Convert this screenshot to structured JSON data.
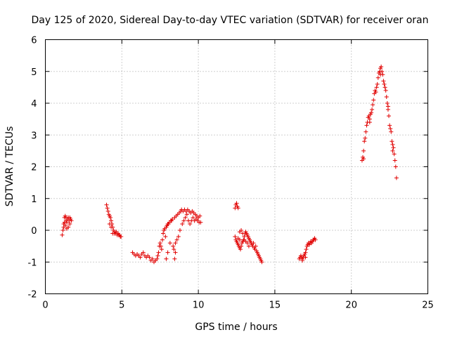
{
  "chart_data": {
    "type": "scatter",
    "title": "Day 125 of 2020, Sidereal Day-to-day VTEC variation (SDTVAR) for receiver oran",
    "xlabel": "GPS time / hours",
    "ylabel": "SDTVAR / TECUs",
    "xlim": [
      0,
      25
    ],
    "ylim": [
      -2,
      6
    ],
    "xticks": [
      0,
      5,
      10,
      15,
      20,
      25
    ],
    "yticks": [
      -2,
      -1,
      0,
      1,
      2,
      3,
      4,
      5,
      6
    ],
    "grid": true,
    "marker": "+",
    "color": "#e00000",
    "series": [
      {
        "name": "SDTVAR",
        "points": [
          [
            1.1,
            -0.15
          ],
          [
            1.15,
            0.0
          ],
          [
            1.2,
            0.2
          ],
          [
            1.25,
            0.4
          ],
          [
            1.3,
            0.45
          ],
          [
            1.35,
            0.3
          ],
          [
            1.4,
            0.25
          ],
          [
            1.45,
            0.35
          ],
          [
            1.5,
            0.4
          ],
          [
            1.55,
            0.3
          ],
          [
            1.6,
            0.2
          ],
          [
            1.65,
            0.35
          ],
          [
            1.7,
            0.3
          ],
          [
            1.2,
            0.1
          ],
          [
            1.3,
            0.15
          ],
          [
            1.4,
            0.05
          ],
          [
            1.5,
            0.1
          ],
          [
            1.35,
            0.4
          ],
          [
            1.6,
            0.4
          ],
          [
            1.25,
            0.25
          ],
          [
            4.0,
            0.8
          ],
          [
            4.05,
            0.7
          ],
          [
            4.1,
            0.6
          ],
          [
            4.15,
            0.5
          ],
          [
            4.2,
            0.45
          ],
          [
            4.25,
            0.4
          ],
          [
            4.3,
            0.3
          ],
          [
            4.35,
            0.2
          ],
          [
            4.4,
            0.1
          ],
          [
            4.45,
            0.0
          ],
          [
            4.5,
            -0.1
          ],
          [
            4.55,
            -0.05
          ],
          [
            4.6,
            -0.1
          ],
          [
            4.65,
            -0.05
          ],
          [
            4.7,
            -0.15
          ],
          [
            4.75,
            -0.1
          ],
          [
            4.8,
            -0.15
          ],
          [
            4.85,
            -0.15
          ],
          [
            4.9,
            -0.2
          ],
          [
            4.95,
            -0.2
          ],
          [
            4.3,
            0.1
          ],
          [
            4.4,
            -0.1
          ],
          [
            4.2,
            0.2
          ],
          [
            5.7,
            -0.7
          ],
          [
            5.8,
            -0.75
          ],
          [
            5.9,
            -0.8
          ],
          [
            6.0,
            -0.75
          ],
          [
            6.1,
            -0.8
          ],
          [
            6.2,
            -0.85
          ],
          [
            6.3,
            -0.75
          ],
          [
            6.4,
            -0.7
          ],
          [
            6.5,
            -0.8
          ],
          [
            6.6,
            -0.85
          ],
          [
            6.7,
            -0.8
          ],
          [
            6.8,
            -0.85
          ],
          [
            6.9,
            -0.95
          ],
          [
            7.0,
            -0.9
          ],
          [
            7.1,
            -1.0
          ],
          [
            7.2,
            -0.95
          ],
          [
            7.3,
            -0.9
          ],
          [
            7.35,
            -0.8
          ],
          [
            7.4,
            -0.7
          ],
          [
            7.45,
            -0.5
          ],
          [
            7.5,
            -0.4
          ],
          [
            7.55,
            -0.5
          ],
          [
            7.6,
            -0.6
          ],
          [
            7.65,
            -0.3
          ],
          [
            7.7,
            -0.1
          ],
          [
            7.75,
            0.0
          ],
          [
            7.8,
            0.05
          ],
          [
            7.85,
            -0.2
          ],
          [
            7.9,
            0.1
          ],
          [
            7.95,
            0.15
          ],
          [
            8.0,
            0.2
          ],
          [
            8.05,
            0.2
          ],
          [
            8.1,
            0.25
          ],
          [
            8.15,
            -0.4
          ],
          [
            8.2,
            0.3
          ],
          [
            8.25,
            0.3
          ],
          [
            8.3,
            0.35
          ],
          [
            8.35,
            -0.5
          ],
          [
            8.4,
            -0.6
          ],
          [
            8.45,
            0.4
          ],
          [
            8.5,
            -0.4
          ],
          [
            8.55,
            0.45
          ],
          [
            8.6,
            -0.3
          ],
          [
            8.65,
            0.5
          ],
          [
            8.7,
            -0.2
          ],
          [
            8.75,
            0.55
          ],
          [
            8.8,
            0.0
          ],
          [
            8.85,
            0.6
          ],
          [
            8.9,
            0.65
          ],
          [
            8.95,
            0.2
          ],
          [
            9.0,
            0.6
          ],
          [
            9.05,
            0.3
          ],
          [
            9.1,
            0.65
          ],
          [
            9.15,
            0.4
          ],
          [
            9.2,
            0.6
          ],
          [
            9.25,
            0.5
          ],
          [
            9.3,
            0.65
          ],
          [
            9.35,
            0.3
          ],
          [
            9.4,
            0.6
          ],
          [
            9.45,
            0.2
          ],
          [
            9.5,
            0.55
          ],
          [
            9.55,
            0.3
          ],
          [
            9.6,
            0.6
          ],
          [
            9.65,
            0.4
          ],
          [
            9.7,
            0.55
          ],
          [
            9.75,
            0.3
          ],
          [
            9.8,
            0.5
          ],
          [
            9.85,
            0.35
          ],
          [
            9.9,
            0.45
          ],
          [
            9.95,
            0.3
          ],
          [
            10.0,
            0.4
          ],
          [
            10.05,
            0.25
          ],
          [
            10.1,
            0.45
          ],
          [
            10.15,
            0.25
          ],
          [
            8.45,
            -0.9
          ],
          [
            8.5,
            -0.7
          ],
          [
            7.9,
            -0.9
          ],
          [
            8.0,
            -0.7
          ],
          [
            12.4,
            0.7
          ],
          [
            12.45,
            0.8
          ],
          [
            12.5,
            0.85
          ],
          [
            12.55,
            0.75
          ],
          [
            12.6,
            0.7
          ],
          [
            12.4,
            -0.2
          ],
          [
            12.45,
            -0.3
          ],
          [
            12.5,
            -0.35
          ],
          [
            12.55,
            -0.4
          ],
          [
            12.6,
            -0.45
          ],
          [
            12.65,
            -0.5
          ],
          [
            12.7,
            -0.55
          ],
          [
            12.75,
            -0.6
          ],
          [
            12.8,
            -0.5
          ],
          [
            12.85,
            -0.4
          ],
          [
            12.9,
            -0.35
          ],
          [
            12.95,
            -0.3
          ],
          [
            13.0,
            -0.2
          ],
          [
            13.05,
            -0.1
          ],
          [
            13.1,
            -0.05
          ],
          [
            13.15,
            -0.1
          ],
          [
            13.2,
            -0.15
          ],
          [
            13.25,
            -0.2
          ],
          [
            13.3,
            -0.25
          ],
          [
            13.35,
            -0.3
          ],
          [
            13.4,
            -0.35
          ],
          [
            13.45,
            -0.4
          ],
          [
            13.5,
            -0.45
          ],
          [
            13.55,
            -0.5
          ],
          [
            13.6,
            -0.4
          ],
          [
            13.65,
            -0.55
          ],
          [
            13.7,
            -0.6
          ],
          [
            13.75,
            -0.5
          ],
          [
            13.8,
            -0.65
          ],
          [
            13.85,
            -0.7
          ],
          [
            13.9,
            -0.75
          ],
          [
            13.95,
            -0.8
          ],
          [
            14.0,
            -0.85
          ],
          [
            14.05,
            -0.9
          ],
          [
            14.1,
            -0.95
          ],
          [
            14.15,
            -1.0
          ],
          [
            12.7,
            -0.05
          ],
          [
            12.8,
            0.0
          ],
          [
            12.9,
            -0.1
          ],
          [
            13.0,
            -0.3
          ],
          [
            13.1,
            -0.35
          ],
          [
            13.2,
            -0.4
          ],
          [
            13.3,
            -0.5
          ],
          [
            12.6,
            -0.25
          ],
          [
            12.7,
            -0.3
          ],
          [
            16.6,
            -0.9
          ],
          [
            16.65,
            -0.85
          ],
          [
            16.7,
            -0.8
          ],
          [
            16.75,
            -0.85
          ],
          [
            16.8,
            -0.9
          ],
          [
            16.85,
            -0.85
          ],
          [
            16.9,
            -0.8
          ],
          [
            16.95,
            -0.75
          ],
          [
            17.0,
            -0.7
          ],
          [
            17.05,
            -0.6
          ],
          [
            17.1,
            -0.5
          ],
          [
            17.15,
            -0.45
          ],
          [
            17.2,
            -0.4
          ],
          [
            17.25,
            -0.45
          ],
          [
            17.3,
            -0.4
          ],
          [
            17.35,
            -0.35
          ],
          [
            17.4,
            -0.4
          ],
          [
            17.45,
            -0.35
          ],
          [
            17.5,
            -0.3
          ],
          [
            17.55,
            -0.3
          ],
          [
            17.6,
            -0.25
          ],
          [
            17.65,
            -0.3
          ],
          [
            16.8,
            -0.95
          ],
          [
            17.0,
            -0.85
          ],
          [
            20.7,
            2.2
          ],
          [
            20.75,
            2.3
          ],
          [
            20.8,
            2.5
          ],
          [
            20.85,
            2.8
          ],
          [
            20.9,
            2.9
          ],
          [
            20.95,
            3.1
          ],
          [
            21.0,
            3.3
          ],
          [
            21.05,
            3.4
          ],
          [
            21.1,
            3.55
          ],
          [
            21.15,
            3.6
          ],
          [
            21.2,
            3.5
          ],
          [
            21.25,
            3.65
          ],
          [
            21.3,
            3.7
          ],
          [
            21.35,
            3.8
          ],
          [
            21.4,
            3.95
          ],
          [
            21.45,
            4.1
          ],
          [
            21.5,
            4.3
          ],
          [
            21.55,
            4.4
          ],
          [
            21.6,
            4.35
          ],
          [
            21.65,
            4.5
          ],
          [
            21.7,
            4.6
          ],
          [
            21.75,
            4.8
          ],
          [
            21.8,
            4.95
          ],
          [
            21.85,
            5.0
          ],
          [
            21.9,
            5.1
          ],
          [
            21.95,
            5.15
          ],
          [
            22.0,
            5.0
          ],
          [
            22.05,
            4.9
          ],
          [
            22.1,
            4.7
          ],
          [
            22.15,
            4.6
          ],
          [
            22.2,
            4.5
          ],
          [
            22.25,
            4.4
          ],
          [
            22.3,
            4.2
          ],
          [
            22.35,
            4.0
          ],
          [
            22.4,
            3.8
          ],
          [
            22.45,
            3.6
          ],
          [
            22.5,
            3.3
          ],
          [
            22.55,
            3.2
          ],
          [
            22.6,
            3.1
          ],
          [
            22.65,
            2.8
          ],
          [
            22.7,
            2.7
          ],
          [
            22.75,
            2.6
          ],
          [
            22.8,
            2.4
          ],
          [
            22.85,
            2.2
          ],
          [
            22.9,
            2.0
          ],
          [
            22.95,
            1.65
          ],
          [
            20.8,
            2.25
          ],
          [
            21.2,
            3.4
          ],
          [
            21.9,
            4.9
          ],
          [
            22.4,
            3.9
          ],
          [
            22.7,
            2.5
          ]
        ]
      }
    ]
  }
}
